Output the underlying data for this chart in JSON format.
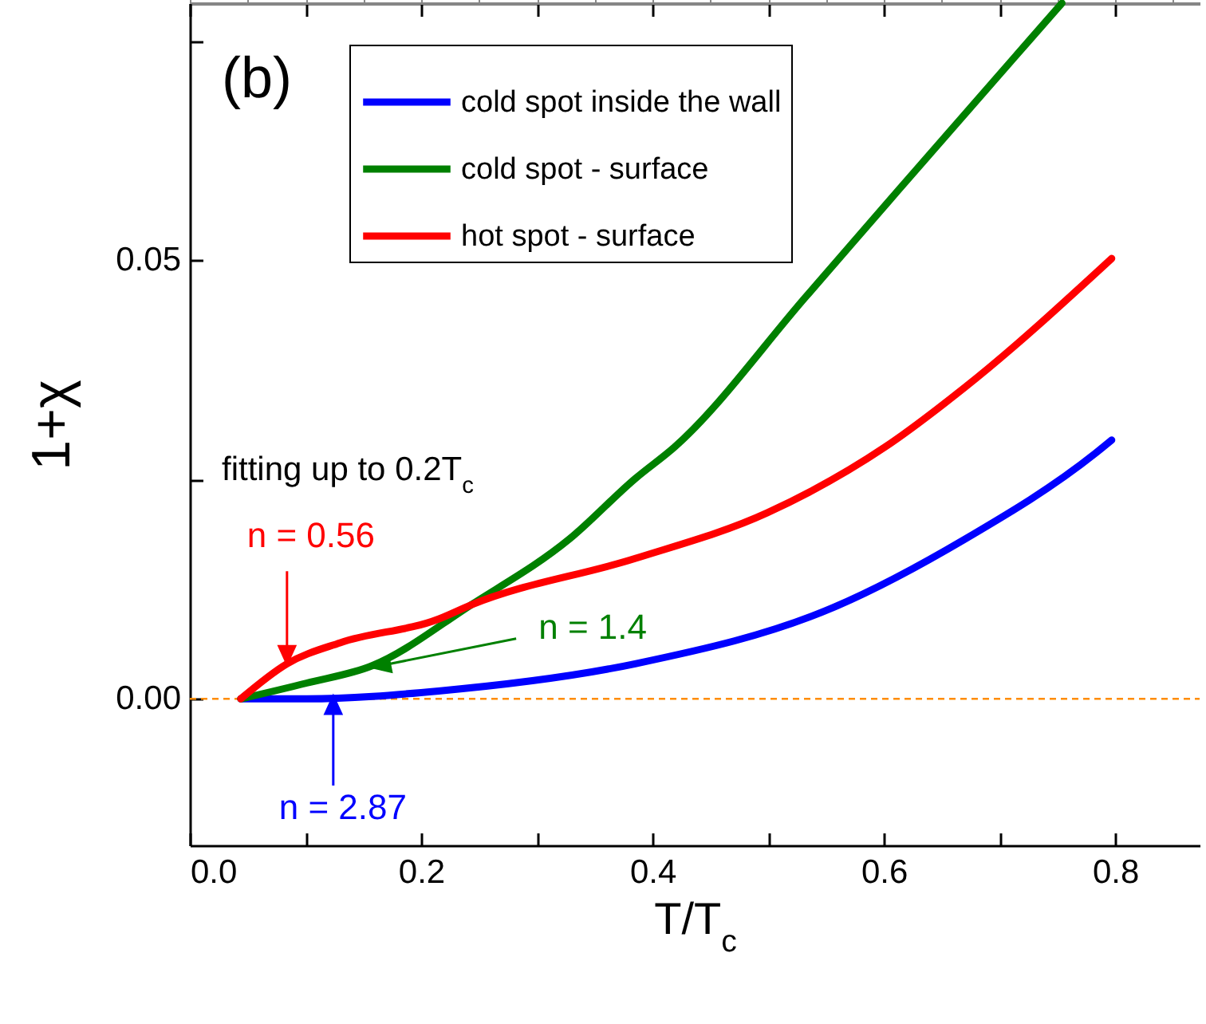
{
  "chart_data": {
    "type": "line",
    "xlabel": "T/T$_{c}$",
    "ylabel": "1+χ",
    "xlim": [
      0,
      0.873
    ],
    "ylim": [
      -0.0167,
      0.0793
    ],
    "xticks": [
      {
        "value": 0,
        "label": "0.0"
      },
      {
        "value": 0.1,
        "label": null
      },
      {
        "value": 0.2,
        "label": "0.2"
      },
      {
        "value": 0.3,
        "label": null
      },
      {
        "value": 0.4,
        "label": "0.4"
      },
      {
        "value": 0.5,
        "label": null
      },
      {
        "value": 0.6,
        "label": "0.6"
      },
      {
        "value": 0.7,
        "label": null
      },
      {
        "value": 0.8,
        "label": "0.8"
      }
    ],
    "yticks": [
      {
        "value": 0,
        "label": "0.00"
      },
      {
        "value": 0.025,
        "label": null
      },
      {
        "value": 0.05,
        "label": "0.05"
      },
      {
        "value": 0.075,
        "label": null
      }
    ],
    "legend": "top left",
    "grid": false,
    "line_style": "solid",
    "marker": "none",
    "series": [
      {
        "name": "cold spot inside the wall",
        "color": "#0000ff",
        "x": [
          0.044,
          0.101,
          0.215,
          0.385,
          0.556,
          0.67,
          0.783,
          0.797
        ],
        "values": [
          0,
          0,
          0.0009,
          0.004,
          0.0104,
          0.0182,
          0.028,
          0.0295
        ]
      },
      {
        "name": "cold spot - surface",
        "color": "#008000",
        "x": [
          0.044,
          0.101,
          0.158,
          0.243,
          0.328,
          0.385,
          0.419,
          0.533,
          0.612,
          0.726,
          0.754
        ],
        "values": [
          0,
          0.0018,
          0.0038,
          0.0107,
          0.0182,
          0.0251,
          0.0287,
          0.0459,
          0.0579,
          0.0751,
          0.0793
        ]
      },
      {
        "name": "hot spot - surface",
        "color": "#ff0000",
        "x": [
          0.044,
          0.084,
          0.13,
          0.215,
          0.243,
          0.385,
          0.499,
          0.601,
          0.67,
          0.797
        ],
        "values": [
          0,
          0.004,
          0.0064,
          0.0091,
          0.0107,
          0.016,
          0.0212,
          0.0287,
          0.0355,
          0.0502
        ]
      }
    ],
    "ref_lines": [
      {
        "axis": "y",
        "value": 0,
        "color": "#ff8c00",
        "line_style": "dashed"
      }
    ],
    "annotations": [
      "(b)",
      "fitting up to 0.2T$_{c}$",
      {
        "text": "n = 0.56",
        "x": 0.084,
        "y": 0.004
      },
      {
        "text": "n = 1.4",
        "x": 0.158,
        "y": 0.0036
      },
      {
        "text": "n = 2.87",
        "x": 0.124,
        "y": 0.0003
      }
    ]
  }
}
